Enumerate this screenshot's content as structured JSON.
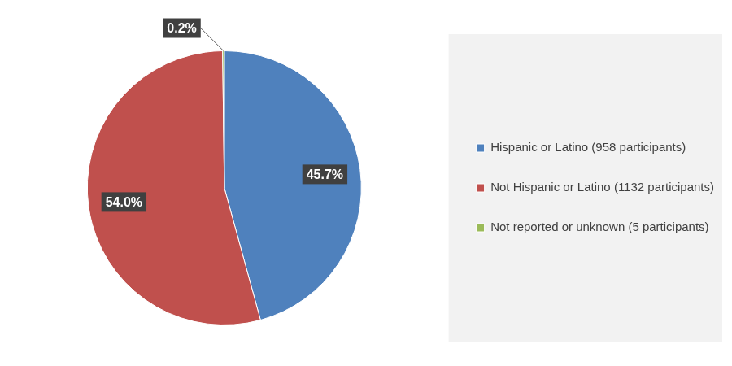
{
  "chart_data": {
    "type": "pie",
    "categories": [
      "Hispanic or Latino (958 participants)",
      "Not Hispanic or Latino (1132 participants)",
      "Not reported or unknown (5 participants)"
    ],
    "values": [
      45.7,
      54.0,
      0.2
    ],
    "value_labels": [
      "45.7%",
      "54.0%",
      "0.2%"
    ],
    "colors": [
      "#4f81bd",
      "#c0504d",
      "#9bbb59"
    ],
    "data_labels": true,
    "legend": "right"
  }
}
